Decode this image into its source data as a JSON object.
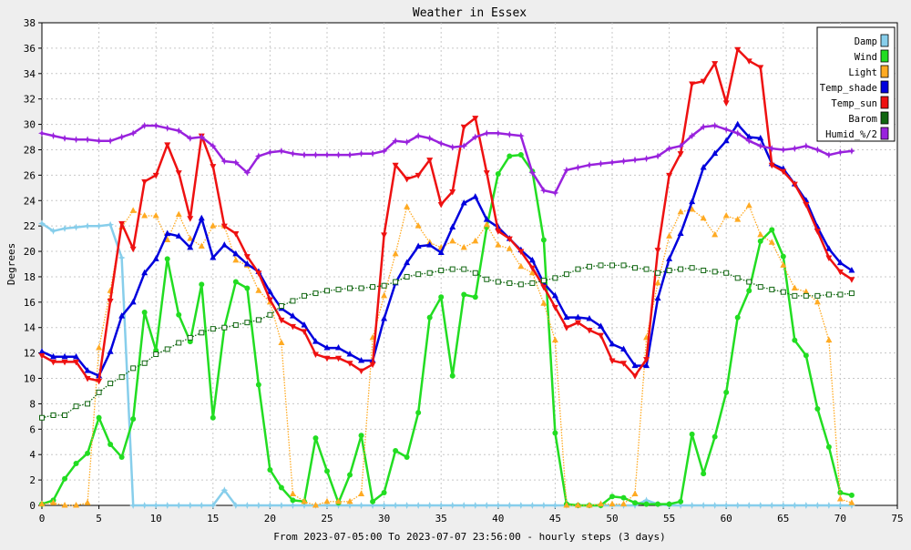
{
  "chart_data": {
    "type": "line",
    "title": "Weather in Essex",
    "xlabel": "From 2023-07-05:00 To 2023-07-07 23:56:00 - hourly steps (3 days)",
    "ylabel": "Degrees",
    "xlim": [
      0,
      75
    ],
    "ylim": [
      0,
      38
    ],
    "x_ticks": [
      0,
      5,
      10,
      15,
      20,
      25,
      30,
      35,
      40,
      45,
      50,
      55,
      60,
      65,
      70,
      75
    ],
    "y_ticks": [
      0,
      2,
      4,
      6,
      8,
      10,
      12,
      14,
      16,
      18,
      20,
      22,
      24,
      26,
      28,
      30,
      32,
      34,
      36,
      38
    ],
    "grid": true,
    "legend_position": "top-right",
    "series": [
      {
        "name": "Damp",
        "color": "#87ceeb",
        "marker": "star",
        "width": 2.5,
        "values": [
          22.2,
          21.6,
          21.8,
          21.9,
          22.0,
          22.0,
          22.1,
          19.5,
          0,
          0,
          0,
          0,
          0,
          0,
          0,
          0,
          1.2,
          0,
          0,
          0,
          0,
          0,
          0,
          0,
          0,
          0,
          0,
          0,
          0,
          0,
          0,
          0,
          0,
          0,
          0,
          0,
          0,
          0,
          0,
          0,
          0,
          0,
          0,
          0,
          0,
          0,
          0,
          0,
          0,
          0,
          0,
          0,
          0,
          0.4,
          0.1,
          0,
          0,
          0,
          0,
          0,
          0,
          0,
          0,
          0,
          0,
          0,
          0,
          0,
          0,
          0,
          0,
          0
        ]
      },
      {
        "name": "Wind",
        "color": "#22dd22",
        "marker": "circle",
        "width": 2.5,
        "values": [
          0.1,
          0.4,
          2.1,
          3.3,
          4.1,
          6.9,
          4.8,
          3.8,
          6.8,
          15.2,
          12.2,
          19.4,
          15.0,
          12.9,
          17.4,
          6.9,
          14.0,
          17.6,
          17.1,
          9.5,
          2.8,
          1.4,
          0.4,
          0.3,
          5.3,
          2.7,
          0.2,
          2.4,
          5.5,
          0.3,
          1.0,
          4.3,
          3.8,
          7.3,
          14.8,
          16.4,
          10.2,
          16.6,
          16.4,
          21.9,
          26.1,
          27.5,
          27.6,
          26.3,
          20.9,
          5.7,
          0.1,
          0,
          0,
          0,
          0.7,
          0.6,
          0.2,
          0.1,
          0.1,
          0.1,
          0.3,
          5.6,
          2.5,
          5.4,
          8.9,
          14.8,
          16.9,
          20.8,
          21.7,
          19.6,
          13.0,
          11.8,
          7.6,
          4.6,
          1.0,
          0.8
        ]
      },
      {
        "name": "Light",
        "color": "#ffaa22",
        "marker": "triangle",
        "dashed": true,
        "width": 1.3,
        "values": [
          0.1,
          0.2,
          0,
          0,
          0.2,
          12.4,
          16.9,
          21.9,
          23.2,
          22.8,
          22.8,
          20.9,
          22.9,
          21.0,
          20.4,
          22.0,
          22.0,
          19.3,
          18.9,
          16.9,
          16.0,
          12.8,
          0.9,
          0.3,
          0,
          0.3,
          0.3,
          0.3,
          0.9,
          13.2,
          16.5,
          19.8,
          23.5,
          22.0,
          20.7,
          20.3,
          20.8,
          20.3,
          20.8,
          22.1,
          20.5,
          20.2,
          18.8,
          18.3,
          15.9,
          13.0,
          0,
          0,
          0,
          0.1,
          0.1,
          0.1,
          0.9,
          13.2,
          17.5,
          21.2,
          23.1,
          23.3,
          22.6,
          21.3,
          22.8,
          22.5,
          23.6,
          21.3,
          20.7,
          18.9,
          17.1,
          16.8,
          16.0,
          13.0,
          0.5,
          0.2
        ]
      },
      {
        "name": "Temp_shade",
        "color": "#0000dd",
        "marker": "triangle",
        "width": 2.5,
        "values": [
          12.1,
          11.7,
          11.7,
          11.7,
          10.6,
          10.2,
          12.1,
          14.9,
          16.0,
          18.3,
          19.4,
          21.4,
          21.2,
          20.3,
          22.6,
          19.5,
          20.5,
          19.8,
          19.0,
          18.4,
          16.8,
          15.5,
          14.9,
          14.2,
          12.9,
          12.4,
          12.4,
          11.9,
          11.4,
          11.4,
          14.7,
          17.5,
          19.1,
          20.4,
          20.5,
          19.9,
          21.9,
          23.8,
          24.3,
          22.5,
          21.9,
          21.0,
          20.1,
          19.3,
          17.5,
          16.5,
          14.8,
          14.8,
          14.7,
          14.1,
          12.7,
          12.3,
          11.0,
          11.0,
          16.3,
          19.4,
          21.4,
          23.9,
          26.6,
          27.7,
          28.7,
          30.0,
          29.0,
          28.9,
          26.9,
          26.5,
          25.3,
          24.0,
          21.9,
          20.2,
          19.1,
          18.5
        ]
      },
      {
        "name": "Temp_sun",
        "color": "#ee1111",
        "marker": "tri-down",
        "width": 2.5,
        "values": [
          11.8,
          11.3,
          11.3,
          11.3,
          10.0,
          9.8,
          16.1,
          22.2,
          20.2,
          25.5,
          26.0,
          28.4,
          26.2,
          22.6,
          29.1,
          26.7,
          22.0,
          21.4,
          19.6,
          18.3,
          16.2,
          14.6,
          14.1,
          13.7,
          11.9,
          11.6,
          11.6,
          11.2,
          10.6,
          11.1,
          21.3,
          26.8,
          25.7,
          26.0,
          27.2,
          23.7,
          24.7,
          29.8,
          30.5,
          26.2,
          21.6,
          21.0,
          20.0,
          18.7,
          17.2,
          15.6,
          14.0,
          14.4,
          13.8,
          13.4,
          11.4,
          11.2,
          10.2,
          11.5,
          20.1,
          26.0,
          27.7,
          33.2,
          33.4,
          34.8,
          31.7,
          35.9,
          35.0,
          34.5,
          26.8,
          26.3,
          25.3,
          23.7,
          21.6,
          19.5,
          18.4,
          17.8
        ]
      },
      {
        "name": "Barom",
        "color": "#116611",
        "marker": "square",
        "dashed": true,
        "width": 1.3,
        "values": [
          6.9,
          7.1,
          7.1,
          7.8,
          8.0,
          8.9,
          9.6,
          10.1,
          10.8,
          11.2,
          11.9,
          12.3,
          12.8,
          13.2,
          13.6,
          13.9,
          14.0,
          14.2,
          14.4,
          14.6,
          15.0,
          15.7,
          16.1,
          16.5,
          16.7,
          16.9,
          17.0,
          17.1,
          17.1,
          17.2,
          17.3,
          17.6,
          18.0,
          18.2,
          18.3,
          18.5,
          18.6,
          18.6,
          18.3,
          17.8,
          17.6,
          17.5,
          17.4,
          17.5,
          17.7,
          17.9,
          18.2,
          18.6,
          18.8,
          18.9,
          18.9,
          18.9,
          18.7,
          18.6,
          18.3,
          18.5,
          18.6,
          18.7,
          18.5,
          18.4,
          18.3,
          17.9,
          17.6,
          17.2,
          17.0,
          16.8,
          16.5,
          16.5,
          16.5,
          16.6,
          16.6,
          16.7
        ]
      },
      {
        "name": "Humid_%/2",
        "color": "#9922dd",
        "marker": "star",
        "width": 2.5,
        "values": [
          29.3,
          29.1,
          28.9,
          28.8,
          28.8,
          28.7,
          28.7,
          29.0,
          29.3,
          29.9,
          29.9,
          29.7,
          29.5,
          28.9,
          29.0,
          28.3,
          27.1,
          27.0,
          26.2,
          27.5,
          27.8,
          27.9,
          27.7,
          27.6,
          27.6,
          27.6,
          27.6,
          27.6,
          27.7,
          27.7,
          27.9,
          28.7,
          28.6,
          29.1,
          28.9,
          28.5,
          28.2,
          28.3,
          29.0,
          29.3,
          29.3,
          29.2,
          29.1,
          26.2,
          24.8,
          24.6,
          26.4,
          26.6,
          26.8,
          26.9,
          27.0,
          27.1,
          27.2,
          27.3,
          27.5,
          28.1,
          28.3,
          29.1,
          29.8,
          29.9,
          29.6,
          29.3,
          28.7,
          28.3,
          28.1,
          28.0,
          28.1,
          28.3,
          28.0,
          27.6,
          27.8,
          27.9
        ]
      }
    ]
  }
}
